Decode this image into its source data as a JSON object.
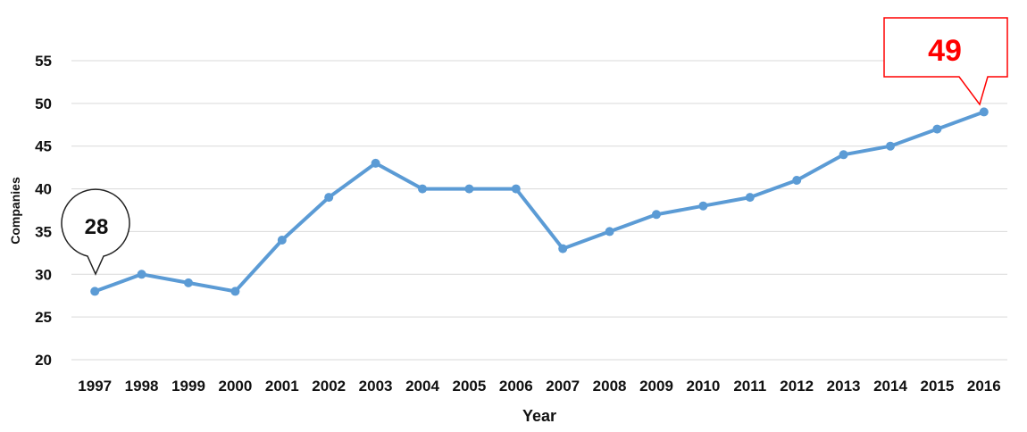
{
  "chart_data": {
    "type": "line",
    "xlabel": "Year",
    "ylabel": "Companies",
    "x": [
      "1997",
      "1998",
      "1999",
      "2000",
      "2001",
      "2002",
      "2003",
      "2004",
      "2005",
      "2006",
      "2007",
      "2008",
      "2009",
      "2010",
      "2011",
      "2012",
      "2013",
      "2014",
      "2015",
      "2016"
    ],
    "series": [
      {
        "values": [
          28,
          30,
          29,
          28,
          34,
          39,
          43,
          40,
          40,
          40,
          33,
          35,
          37,
          38,
          39,
          41,
          44,
          45,
          47,
          49
        ]
      }
    ],
    "ylim": [
      20,
      55
    ],
    "yticks": [
      20,
      25,
      30,
      35,
      40,
      45,
      50,
      55
    ],
    "grid": true,
    "line_color": "#5b9bd5",
    "annotations": [
      {
        "x": "1997",
        "text": "28",
        "color": "#111111"
      },
      {
        "x": "2016",
        "text": "49",
        "color": "#ff0000"
      }
    ]
  }
}
